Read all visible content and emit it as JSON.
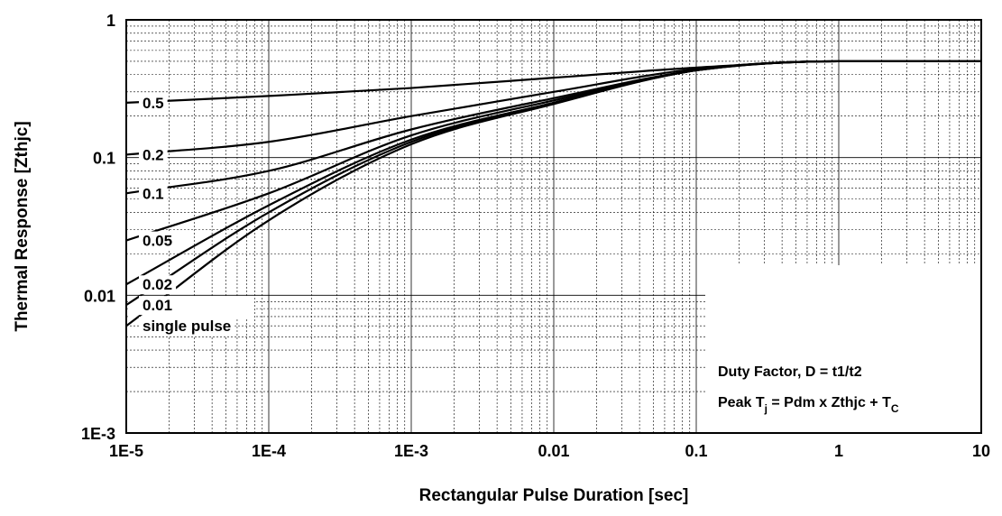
{
  "chart_data": {
    "type": "line",
    "xlabel": "Rectangular Pulse Duration [sec]",
    "ylabel": "Thermal Response [Zthjc]",
    "x_scale": "log",
    "y_scale": "log",
    "xlim": [
      1e-05,
      10
    ],
    "ylim": [
      0.001,
      1
    ],
    "grid": true,
    "x_ticks": [
      "1E-5",
      "1E-4",
      "1E-3",
      "0.01",
      "0.1",
      "1",
      "10"
    ],
    "y_ticks": [
      "1E-3",
      "0.01",
      "0.1",
      "1"
    ],
    "annotations": {
      "line1": "Duty Factor, D = t1/t2",
      "line2_prefix": "Peak T",
      "line2_sub1": "j",
      "line2_mid": " = Pdm x Zthjc + T",
      "line2_sub2": "C"
    },
    "series": [
      {
        "name": "0.5",
        "x": [
          1e-05,
          0.0001,
          0.001,
          0.01,
          0.1,
          1,
          10
        ],
        "y": [
          0.25,
          0.28,
          0.32,
          0.38,
          0.45,
          0.5,
          0.5
        ]
      },
      {
        "name": "0.2",
        "x": [
          1e-05,
          0.0001,
          0.001,
          0.01,
          0.1,
          1,
          10
        ],
        "y": [
          0.105,
          0.13,
          0.2,
          0.3,
          0.44,
          0.5,
          0.5
        ]
      },
      {
        "name": "0.1",
        "x": [
          1e-05,
          0.0001,
          0.001,
          0.01,
          0.1,
          1,
          10
        ],
        "y": [
          0.055,
          0.08,
          0.16,
          0.27,
          0.43,
          0.5,
          0.5
        ]
      },
      {
        "name": "0.05",
        "x": [
          1e-05,
          0.0001,
          0.001,
          0.01,
          0.1,
          1,
          10
        ],
        "y": [
          0.025,
          0.055,
          0.145,
          0.26,
          0.43,
          0.5,
          0.5
        ]
      },
      {
        "name": "0.02",
        "x": [
          1e-05,
          0.0001,
          0.001,
          0.01,
          0.1,
          1,
          10
        ],
        "y": [
          0.012,
          0.045,
          0.135,
          0.25,
          0.43,
          0.5,
          0.5
        ]
      },
      {
        "name": "0.01",
        "x": [
          1e-05,
          0.0001,
          0.001,
          0.01,
          0.1,
          1,
          10
        ],
        "y": [
          0.0085,
          0.04,
          0.13,
          0.25,
          0.43,
          0.5,
          0.5
        ]
      },
      {
        "name": "single pulse",
        "x": [
          1e-05,
          0.0001,
          0.001,
          0.01,
          0.1,
          1,
          10
        ],
        "y": [
          0.006,
          0.035,
          0.125,
          0.245,
          0.43,
          0.5,
          0.5
        ]
      }
    ]
  }
}
